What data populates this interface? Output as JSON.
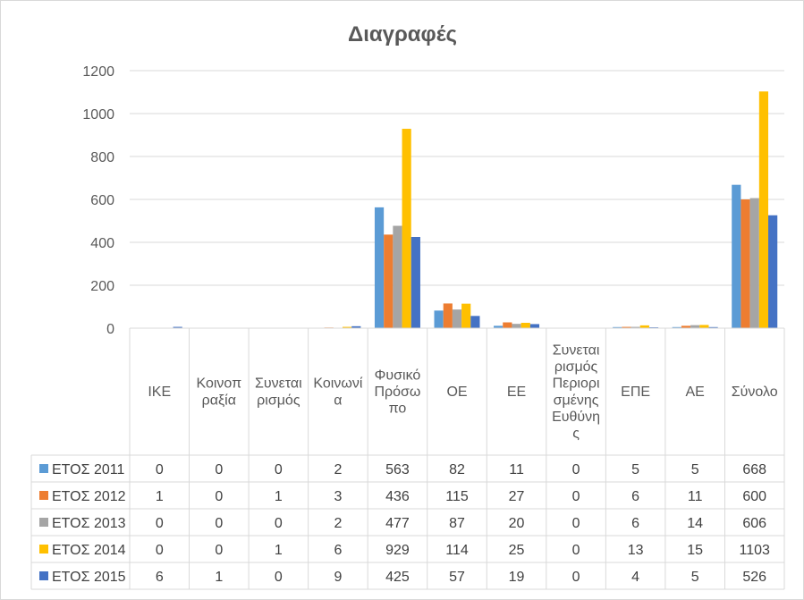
{
  "chart_data": {
    "type": "bar",
    "title": "Διαγραφές",
    "ylim": [
      0,
      1200
    ],
    "yticks": [
      0,
      200,
      400,
      600,
      800,
      1000,
      1200
    ],
    "grid": true,
    "legend": "data-table",
    "categories": [
      "ΙΚΕ",
      "Κοινοπ ραξία",
      "Συνεται ρισμός",
      "Κοινωνί α",
      "Φυσικό Πρόσω πο",
      "ΟΕ",
      "ΕΕ",
      "Συνεται ρισμός Περιορι σμένης Ευθύνη ς",
      "ΕΠΕ",
      "ΑΕ",
      "Σύνολο"
    ],
    "category_lines": [
      [
        "ΙΚΕ"
      ],
      [
        "Κοινοπ",
        "ραξία"
      ],
      [
        "Συνεται",
        "ρισμός"
      ],
      [
        "Κοινωνί",
        "α"
      ],
      [
        "Φυσικό",
        "Πρόσω",
        "πο"
      ],
      [
        "ΟΕ"
      ],
      [
        "ΕΕ"
      ],
      [
        "Συνεται",
        "ρισμός",
        "Περιορι",
        "σμένης",
        "Ευθύνη",
        "ς"
      ],
      [
        "ΕΠΕ"
      ],
      [
        "ΑΕ"
      ],
      [
        "Σύνολο"
      ]
    ],
    "series": [
      {
        "name": "ΕΤΟΣ 2011",
        "color": "#5B9BD5",
        "values": [
          0,
          0,
          0,
          2,
          563,
          82,
          11,
          0,
          5,
          5,
          668
        ]
      },
      {
        "name": "ΕΤΟΣ 2012",
        "color": "#ED7D31",
        "values": [
          1,
          0,
          1,
          3,
          436,
          115,
          27,
          0,
          6,
          11,
          600
        ]
      },
      {
        "name": "ΕΤΟΣ 2013",
        "color": "#A5A5A5",
        "values": [
          0,
          0,
          0,
          2,
          477,
          87,
          20,
          0,
          6,
          14,
          606
        ]
      },
      {
        "name": "ΕΤΟΣ 2014",
        "color": "#FFC000",
        "values": [
          0,
          0,
          1,
          6,
          929,
          114,
          25,
          0,
          13,
          15,
          1103
        ]
      },
      {
        "name": "ΕΤΟΣ 2015",
        "color": "#4472C4",
        "values": [
          6,
          1,
          0,
          9,
          425,
          57,
          19,
          0,
          4,
          5,
          526
        ]
      }
    ]
  }
}
